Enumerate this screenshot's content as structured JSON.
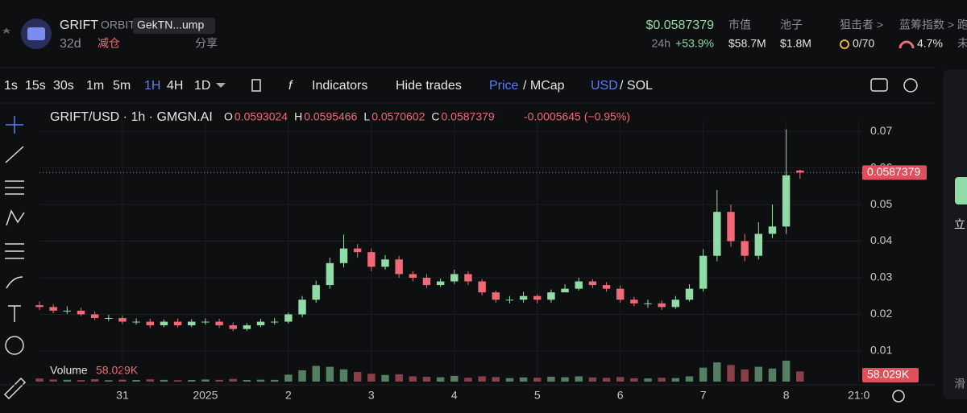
{
  "header": {
    "symbol": "GRIFT",
    "tag": "ORBIT",
    "address": "GekTN...ump",
    "age": "32d",
    "action": "减仓",
    "share": "分享",
    "price": "$0.0587379",
    "period": "24h",
    "change": "+53.9%",
    "stats": [
      {
        "label": "市值",
        "value": "$58.7M"
      },
      {
        "label": "池子",
        "value": "$1.8M"
      },
      {
        "label": "狙击者 >",
        "value": "0/70"
      },
      {
        "label": "蓝筹指数 >",
        "value": "4.7%"
      },
      {
        "label": "跑",
        "value": "未"
      }
    ]
  },
  "toolbar": {
    "intervals": [
      "1s",
      "15s",
      "30s",
      "1m",
      "5m",
      "1H",
      "4H",
      "1D"
    ],
    "active": "1H",
    "indicators": "Indicators",
    "hide_trades": "Hide trades",
    "price": "Price",
    "mcap": "/ MCap",
    "usd": "USD",
    "sol": "/ SOL"
  },
  "side_panel": {
    "texts": [
      "立",
      "滑"
    ]
  },
  "chart_data": {
    "type": "candlestick",
    "title": "GRIFT/USD · 1h · GMGN.AI",
    "ohlc_labels": [
      "O",
      "H",
      "L",
      "C"
    ],
    "ohlc_values": [
      0.0593024,
      0.0595466,
      0.0570602,
      0.0587379
    ],
    "change_label": "-0.0005645 (−0.95%)",
    "last_price": 0.0587379,
    "up_color": "#8fdca6",
    "down_color": "#ef6a76",
    "x": [
      0,
      4,
      8,
      12,
      16,
      20,
      24,
      28,
      32,
      36,
      40,
      44,
      48,
      52,
      56,
      60,
      64,
      68,
      72,
      76,
      80,
      84,
      88,
      92,
      96,
      100,
      104,
      108,
      112,
      116,
      120,
      124,
      128,
      132,
      136,
      140,
      144,
      148,
      152,
      156,
      160,
      164,
      168,
      172,
      176,
      180,
      184,
      188,
      192,
      196,
      200,
      204,
      208,
      212,
      216,
      220
    ],
    "open": [
      0.0225,
      0.022,
      0.021,
      0.021,
      0.02,
      0.019,
      0.019,
      0.018,
      0.018,
      0.017,
      0.018,
      0.017,
      0.018,
      0.018,
      0.017,
      0.016,
      0.017,
      0.018,
      0.018,
      0.02,
      0.024,
      0.028,
      0.034,
      0.038,
      0.037,
      0.033,
      0.035,
      0.031,
      0.03,
      0.028,
      0.029,
      0.031,
      0.029,
      0.026,
      0.024,
      0.024,
      0.025,
      0.024,
      0.026,
      0.027,
      0.029,
      0.028,
      0.027,
      0.024,
      0.023,
      0.023,
      0.022,
      0.024,
      0.027,
      0.036,
      0.048,
      0.04,
      0.036,
      0.042,
      0.044,
      0.0593024
    ],
    "high": [
      0.0235,
      0.0228,
      0.0222,
      0.0218,
      0.0208,
      0.0199,
      0.0197,
      0.0189,
      0.0188,
      0.0186,
      0.0189,
      0.0187,
      0.0189,
      0.0188,
      0.0178,
      0.0176,
      0.0188,
      0.019,
      0.0205,
      0.025,
      0.0292,
      0.0355,
      0.0418,
      0.0392,
      0.038,
      0.0362,
      0.036,
      0.0318,
      0.031,
      0.0298,
      0.0322,
      0.0318,
      0.0296,
      0.0265,
      0.025,
      0.0262,
      0.0255,
      0.0268,
      0.0282,
      0.03,
      0.0296,
      0.0288,
      0.0279,
      0.0248,
      0.024,
      0.0238,
      0.025,
      0.0282,
      0.0378,
      0.054,
      0.05,
      0.042,
      0.0452,
      0.05,
      0.0705,
      0.0595466
    ],
    "low": [
      0.0212,
      0.0203,
      0.0201,
      0.0195,
      0.0184,
      0.0182,
      0.0174,
      0.0172,
      0.0163,
      0.0165,
      0.0164,
      0.0165,
      0.0172,
      0.0163,
      0.0154,
      0.0155,
      0.0165,
      0.0172,
      0.0175,
      0.0192,
      0.0232,
      0.027,
      0.0328,
      0.0355,
      0.0318,
      0.0322,
      0.03,
      0.029,
      0.0272,
      0.0275,
      0.0283,
      0.028,
      0.0252,
      0.0232,
      0.023,
      0.0232,
      0.023,
      0.0232,
      0.0262,
      0.0265,
      0.0272,
      0.0262,
      0.0232,
      0.0222,
      0.0218,
      0.0212,
      0.0215,
      0.0235,
      0.0262,
      0.0345,
      0.0385,
      0.0345,
      0.035,
      0.0408,
      0.042,
      0.0570602
    ],
    "close": [
      0.022,
      0.021,
      0.021,
      0.02,
      0.019,
      0.019,
      0.018,
      0.018,
      0.017,
      0.018,
      0.017,
      0.018,
      0.018,
      0.017,
      0.016,
      0.017,
      0.018,
      0.018,
      0.02,
      0.024,
      0.028,
      0.034,
      0.038,
      0.037,
      0.033,
      0.035,
      0.031,
      0.03,
      0.028,
      0.029,
      0.031,
      0.029,
      0.026,
      0.024,
      0.024,
      0.025,
      0.024,
      0.026,
      0.027,
      0.029,
      0.028,
      0.027,
      0.024,
      0.023,
      0.023,
      0.022,
      0.024,
      0.027,
      0.036,
      0.048,
      0.04,
      0.036,
      0.042,
      0.044,
      0.058,
      0.0587379
    ],
    "volume_name": "Volume",
    "volume_last_label": "58.029K",
    "volume": [
      18,
      12,
      10,
      9,
      14,
      8,
      11,
      9,
      13,
      10,
      8,
      9,
      12,
      10,
      15,
      9,
      11,
      10,
      40,
      65,
      90,
      85,
      70,
      55,
      45,
      38,
      42,
      30,
      28,
      25,
      33,
      22,
      30,
      26,
      20,
      24,
      22,
      28,
      25,
      30,
      24,
      21,
      26,
      19,
      18,
      22,
      20,
      30,
      80,
      110,
      95,
      70,
      85,
      75,
      120,
      58.029
    ],
    "xlim": [
      0,
      238
    ],
    "ylim": [
      0.0069,
      0.0729
    ],
    "xticks": [
      {
        "value": 24,
        "label": "31"
      },
      {
        "value": 48,
        "label": "2025"
      },
      {
        "value": 72,
        "label": "2"
      },
      {
        "value": 96,
        "label": "3"
      },
      {
        "value": 120,
        "label": "4"
      },
      {
        "value": 144,
        "label": "5"
      },
      {
        "value": 168,
        "label": "6"
      },
      {
        "value": 192,
        "label": "7"
      },
      {
        "value": 216,
        "label": "8"
      },
      {
        "value": 237,
        "label": "21:0"
      }
    ],
    "yticks": [
      0.01,
      0.02,
      0.03,
      0.04,
      0.05,
      0.06,
      0.07
    ],
    "grid": true
  }
}
